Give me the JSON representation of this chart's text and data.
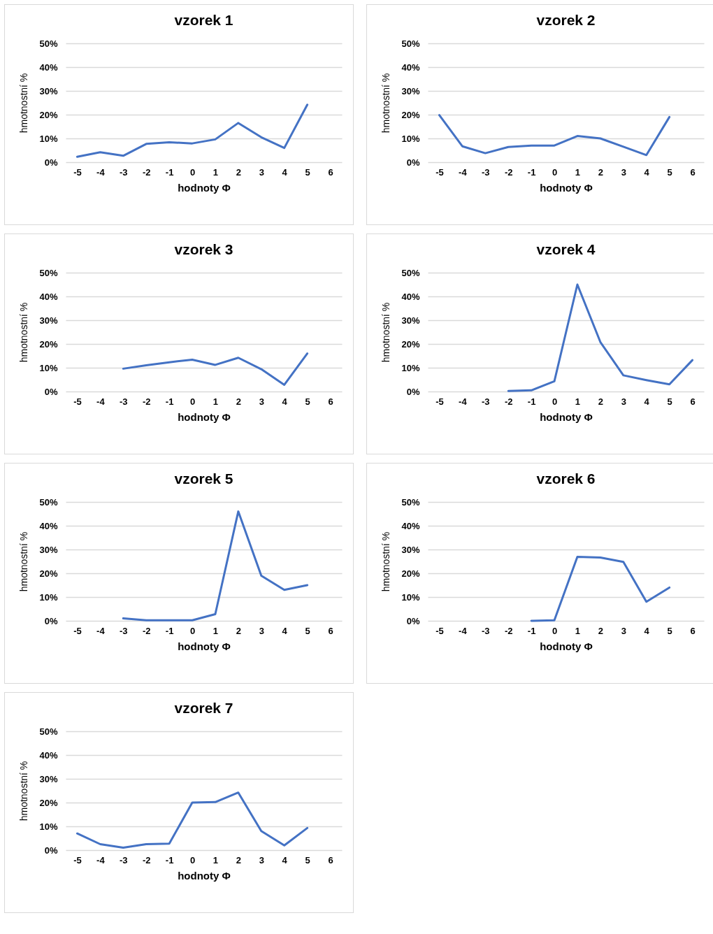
{
  "chart_data": [
    {
      "type": "line",
      "title": "vzorek 1",
      "xlabel": "hodnoty Φ",
      "ylabel": "hmotnostní %",
      "categories": [
        "-5",
        "-4",
        "-3",
        "-2",
        "-1",
        "0",
        "1",
        "2",
        "3",
        "4",
        "5",
        "6"
      ],
      "series": [
        {
          "color": "#4472c4",
          "values": [
            2.3,
            4.2,
            2.7,
            7.7,
            8.4,
            7.9,
            9.6,
            16.5,
            10.5,
            6,
            24.2,
            null
          ]
        }
      ],
      "ylim": [
        0,
        50
      ],
      "yticks": [
        {
          "value": 0,
          "label": "0%"
        },
        {
          "value": 10,
          "label": "10%"
        },
        {
          "value": 20,
          "label": "20%"
        },
        {
          "value": 30,
          "label": "30%"
        },
        {
          "value": 40,
          "label": "40%"
        },
        {
          "value": 50,
          "label": "50%"
        }
      ],
      "grid": "y"
    },
    {
      "type": "line",
      "title": "vzorek 2",
      "xlabel": "hodnoty Φ",
      "ylabel": "hmotnostní %",
      "categories": [
        "-5",
        "-4",
        "-3",
        "-2",
        "-1",
        "0",
        "1",
        "2",
        "3",
        "4",
        "5",
        "6"
      ],
      "series": [
        {
          "color": "#4472c4",
          "values": [
            19.8,
            6.7,
            3.8,
            6.4,
            7,
            7,
            11,
            10,
            6.5,
            3,
            19,
            null
          ]
        }
      ],
      "ylim": [
        0,
        50
      ],
      "yticks": [
        {
          "value": 0,
          "label": "0%"
        },
        {
          "value": 10,
          "label": "10%"
        },
        {
          "value": 20,
          "label": "20%"
        },
        {
          "value": 30,
          "label": "30%"
        },
        {
          "value": 40,
          "label": "40%"
        },
        {
          "value": 50,
          "label": "50%"
        }
      ],
      "grid": "y"
    },
    {
      "type": "line",
      "title": "vzorek 3",
      "xlabel": "hodnoty Φ",
      "ylabel": "hmotnostní %",
      "categories": [
        "-5",
        "-4",
        "-3",
        "-2",
        "-1",
        "0",
        "1",
        "2",
        "3",
        "4",
        "5",
        "6"
      ],
      "series": [
        {
          "color": "#4472c4",
          "values": [
            null,
            null,
            9.6,
            11,
            12.3,
            13.4,
            11.2,
            14.2,
            9.4,
            2.8,
            16,
            null
          ]
        }
      ],
      "ylim": [
        0,
        50
      ],
      "yticks": [
        {
          "value": 0,
          "label": "0%"
        },
        {
          "value": 10,
          "label": "10%"
        },
        {
          "value": 20,
          "label": "20%"
        },
        {
          "value": 30,
          "label": "30%"
        },
        {
          "value": 40,
          "label": "40%"
        },
        {
          "value": 50,
          "label": "50%"
        }
      ],
      "grid": "y"
    },
    {
      "type": "line",
      "title": "vzorek 4",
      "xlabel": "hodnoty Φ",
      "ylabel": "hmotnostní %",
      "categories": [
        "-5",
        "-4",
        "-3",
        "-2",
        "-1",
        "0",
        "1",
        "2",
        "3",
        "4",
        "5",
        "6"
      ],
      "series": [
        {
          "color": "#4472c4",
          "values": [
            null,
            null,
            null,
            0.2,
            0.5,
            4.3,
            45,
            20.8,
            6.8,
            4.8,
            3,
            13.2
          ]
        }
      ],
      "ylim": [
        0,
        50
      ],
      "yticks": [
        {
          "value": 0,
          "label": "0%"
        },
        {
          "value": 10,
          "label": "10%"
        },
        {
          "value": 20,
          "label": "20%"
        },
        {
          "value": 30,
          "label": "30%"
        },
        {
          "value": 40,
          "label": "40%"
        },
        {
          "value": 50,
          "label": "50%"
        }
      ],
      "grid": "y"
    },
    {
      "type": "line",
      "title": "vzorek 5",
      "xlabel": "hodnoty Φ",
      "ylabel": "hmotnostní %",
      "categories": [
        "-5",
        "-4",
        "-3",
        "-2",
        "-1",
        "0",
        "1",
        "2",
        "3",
        "4",
        "5",
        "6"
      ],
      "series": [
        {
          "color": "#4472c4",
          "values": [
            null,
            null,
            1,
            0.2,
            0.2,
            0.2,
            2.8,
            46,
            19,
            13,
            15,
            null
          ]
        }
      ],
      "ylim": [
        0,
        50
      ],
      "yticks": [
        {
          "value": 0,
          "label": "0%"
        },
        {
          "value": 10,
          "label": "10%"
        },
        {
          "value": 20,
          "label": "20%"
        },
        {
          "value": 30,
          "label": "30%"
        },
        {
          "value": 40,
          "label": "40%"
        },
        {
          "value": 50,
          "label": "50%"
        }
      ],
      "grid": "y"
    },
    {
      "type": "line",
      "title": "vzorek 6",
      "xlabel": "hodnoty Φ",
      "ylabel": "hmotnostní %",
      "categories": [
        "-5",
        "-4",
        "-3",
        "-2",
        "-1",
        "0",
        "1",
        "2",
        "3",
        "4",
        "5",
        "6"
      ],
      "series": [
        {
          "color": "#4472c4",
          "values": [
            null,
            null,
            null,
            null,
            0,
            0.2,
            26.9,
            26.6,
            24.8,
            8,
            14,
            null
          ]
        }
      ],
      "ylim": [
        0,
        50
      ],
      "yticks": [
        {
          "value": 0,
          "label": "0%"
        },
        {
          "value": 10,
          "label": "10%"
        },
        {
          "value": 20,
          "label": "20%"
        },
        {
          "value": 30,
          "label": "30%"
        },
        {
          "value": 40,
          "label": "40%"
        },
        {
          "value": 50,
          "label": "50%"
        }
      ],
      "grid": "y"
    },
    {
      "type": "line",
      "title": "vzorek 7",
      "xlabel": "hodnoty Φ",
      "ylabel": "hmotnostní %",
      "categories": [
        "-5",
        "-4",
        "-3",
        "-2",
        "-1",
        "0",
        "1",
        "2",
        "3",
        "4",
        "5",
        "6"
      ],
      "series": [
        {
          "color": "#4472c4",
          "values": [
            7,
            2.5,
            1,
            2.5,
            2.7,
            20,
            20.2,
            24.2,
            8,
            2,
            9.3,
            null
          ]
        }
      ],
      "ylim": [
        0,
        50
      ],
      "yticks": [
        {
          "value": 0,
          "label": "0%"
        },
        {
          "value": 10,
          "label": "10%"
        },
        {
          "value": 20,
          "label": "20%"
        },
        {
          "value": 30,
          "label": "30%"
        },
        {
          "value": 40,
          "label": "40%"
        },
        {
          "value": 50,
          "label": "50%"
        }
      ],
      "grid": "y"
    }
  ]
}
